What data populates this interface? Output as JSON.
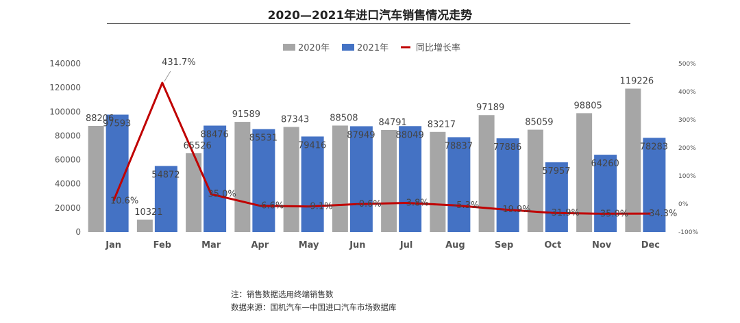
{
  "chart_data": {
    "type": "bar",
    "title": "2020—2021年进口汽车销售情况走势",
    "categories": [
      "Jan",
      "Feb",
      "Mar",
      "Apr",
      "May",
      "Jun",
      "Jul",
      "Aug",
      "Sep",
      "Oct",
      "Nov",
      "Dec"
    ],
    "series": [
      {
        "name": "2020年",
        "kind": "bar",
        "color": "#a6a6a6",
        "values": [
          88206,
          10321,
          65526,
          91589,
          87343,
          88508,
          84791,
          83217,
          97189,
          85059,
          98805,
          119226
        ]
      },
      {
        "name": "2021年",
        "kind": "bar",
        "color": "#4472c4",
        "values": [
          97593,
          54872,
          88476,
          85531,
          79416,
          87949,
          88049,
          78837,
          77886,
          57957,
          64260,
          78283
        ]
      },
      {
        "name": "同比增长率",
        "kind": "line",
        "axis": "right",
        "color": "#c00000",
        "values": [
          10.6,
          431.7,
          35.0,
          -6.6,
          -9.1,
          -0.6,
          3.8,
          -5.3,
          -19.9,
          -31.9,
          -35.0,
          -34.3
        ],
        "labels": [
          "10.6%",
          "431.7%",
          "35.0%",
          "-6.6%",
          "-9.1%",
          "-0.6%",
          "3.8%",
          "-5.3%",
          "-19.9%",
          "-31.9%",
          "-35.0%",
          "-34.3%"
        ]
      }
    ],
    "ylim": [
      0,
      140000
    ],
    "yticks": [
      0,
      20000,
      40000,
      60000,
      80000,
      100000,
      120000,
      140000
    ],
    "y2lim": [
      -100,
      500
    ],
    "y2ticks": [
      -100,
      0,
      100,
      200,
      300,
      400,
      500
    ],
    "y2ticklabels": [
      "-100%",
      "0%",
      "100%",
      "200%",
      "300%",
      "400%",
      "500%"
    ],
    "legend": "top-center",
    "grid": false
  },
  "notes": [
    "注：销售数据选用终端销售数",
    "数据来源：国机汽车—中国进口汽车市场数据库"
  ]
}
